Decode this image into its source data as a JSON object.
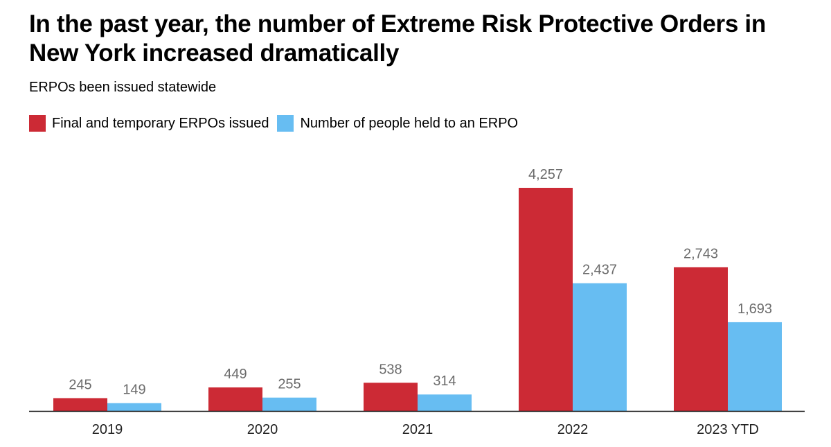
{
  "header": {
    "title": "In the past year, the number of Extreme Risk Protective Orders in New York increased dramatically",
    "subtitle": "ERPOs been issued statewide"
  },
  "legend": {
    "items": [
      {
        "label": "Final and temporary ERPOs issued",
        "color": "#cc2a35"
      },
      {
        "label": "Number of people held to an ERPO",
        "color": "#67bdf2"
      }
    ]
  },
  "chart_data": {
    "type": "bar",
    "title": "In the past year, the number of Extreme Risk Protective Orders in New York increased dramatically",
    "subtitle": "ERPOs been issued statewide",
    "categories": [
      "2019",
      "2020",
      "2021",
      "2022",
      "2023 YTD"
    ],
    "series": [
      {
        "name": "Final and temporary ERPOs issued",
        "color": "#cc2a35",
        "values": [
          245,
          449,
          538,
          4257,
          2743
        ],
        "labels": [
          "245",
          "449",
          "538",
          "4,257",
          "2,743"
        ]
      },
      {
        "name": "Number of people held to an ERPO",
        "color": "#67bdf2",
        "values": [
          149,
          255,
          314,
          2437,
          1693
        ],
        "labels": [
          "149",
          "255",
          "314",
          "2,437",
          "1,693"
        ]
      }
    ],
    "xlabel": "",
    "ylabel": "",
    "ylim": [
      0,
      4257
    ],
    "grid": false,
    "legend_position": "top-left"
  }
}
